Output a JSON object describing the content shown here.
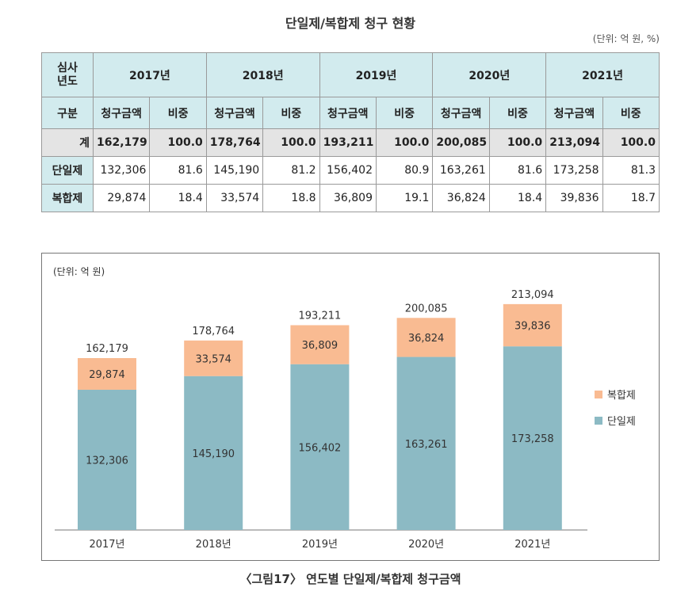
{
  "title": "단일제/복합제 청구 현황",
  "unit": "(단위: 억 원, %)",
  "table": {
    "corner": "심사\n년도",
    "years": [
      "2017년",
      "2018년",
      "2019년",
      "2020년",
      "2021년"
    ],
    "sub_label": "구분",
    "sub_headers": [
      "청구금액",
      "비중"
    ],
    "rows": [
      {
        "label": "계",
        "values": [
          "162,179",
          "100.0",
          "178,764",
          "100.0",
          "193,211",
          "100.0",
          "200,085",
          "100.0",
          "213,094",
          "100.0"
        ]
      },
      {
        "label": "단일제",
        "values": [
          "132,306",
          "81.6",
          "145,190",
          "81.2",
          "156,402",
          "80.9",
          "163,261",
          "81.6",
          "173,258",
          "81.3"
        ]
      },
      {
        "label": "복합제",
        "values": [
          "29,874",
          "18.4",
          "33,574",
          "18.8",
          "36,809",
          "19.1",
          "36,824",
          "18.4",
          "39,836",
          "18.7"
        ]
      }
    ]
  },
  "chart_data": {
    "type": "bar",
    "stacked": true,
    "unit_label": "(단위: 억 원)",
    "categories": [
      "2017년",
      "2018년",
      "2019년",
      "2020년",
      "2021년"
    ],
    "series": [
      {
        "name": "단일제",
        "values": [
          132306,
          145190,
          156402,
          163261,
          173258
        ],
        "color": "#8cbac4"
      },
      {
        "name": "복합제",
        "values": [
          29874,
          33574,
          36809,
          36824,
          39836
        ],
        "color": "#f9bb92"
      }
    ],
    "totals": [
      162179,
      178764,
      193211,
      200085,
      213094
    ],
    "legend": [
      "복합제",
      "단일제"
    ],
    "legend_position": "right",
    "grid": false
  },
  "caption": "〈그림17〉 연도별 단일제/복합제 청구금액"
}
